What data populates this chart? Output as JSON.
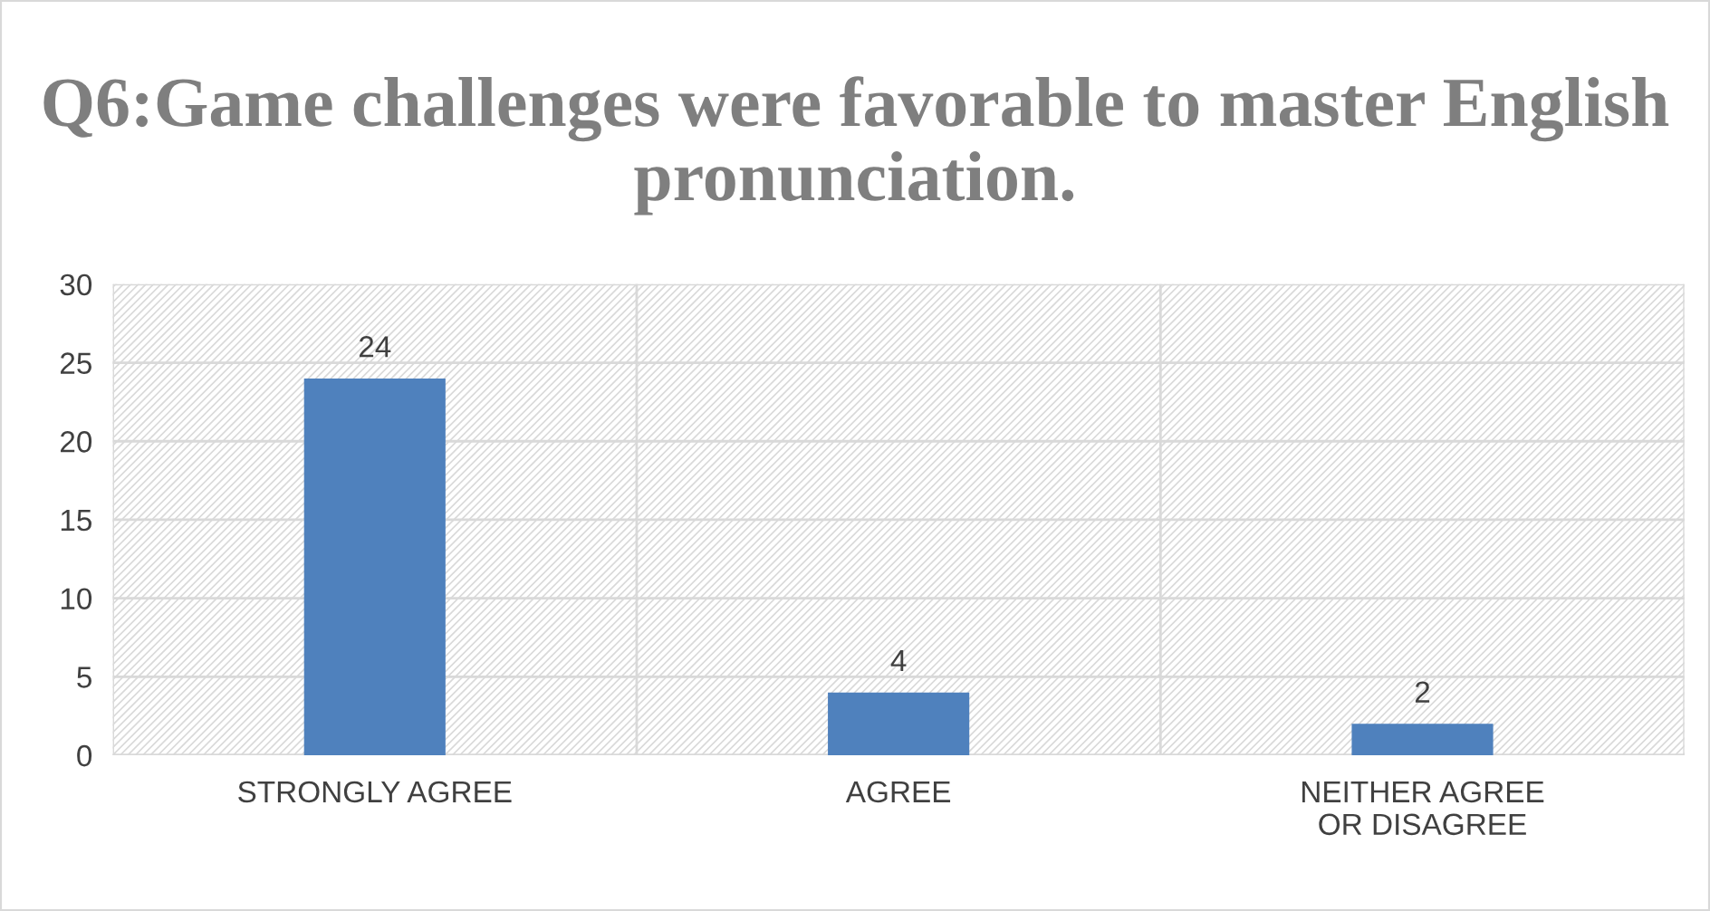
{
  "chart_data": {
    "type": "bar",
    "title": "Q6:Game challenges were favorable to master English pronunciation.",
    "categories": [
      "STRONGLY AGREE",
      "AGREE",
      "NEITHER AGREE OR DISAGREE"
    ],
    "values": [
      24,
      4,
      2
    ],
    "color": "#4f81bd",
    "ylim": [
      0,
      30
    ],
    "yticks": [
      0,
      5,
      10,
      15,
      20,
      25,
      30
    ],
    "grid": true,
    "data_labels": true
  }
}
